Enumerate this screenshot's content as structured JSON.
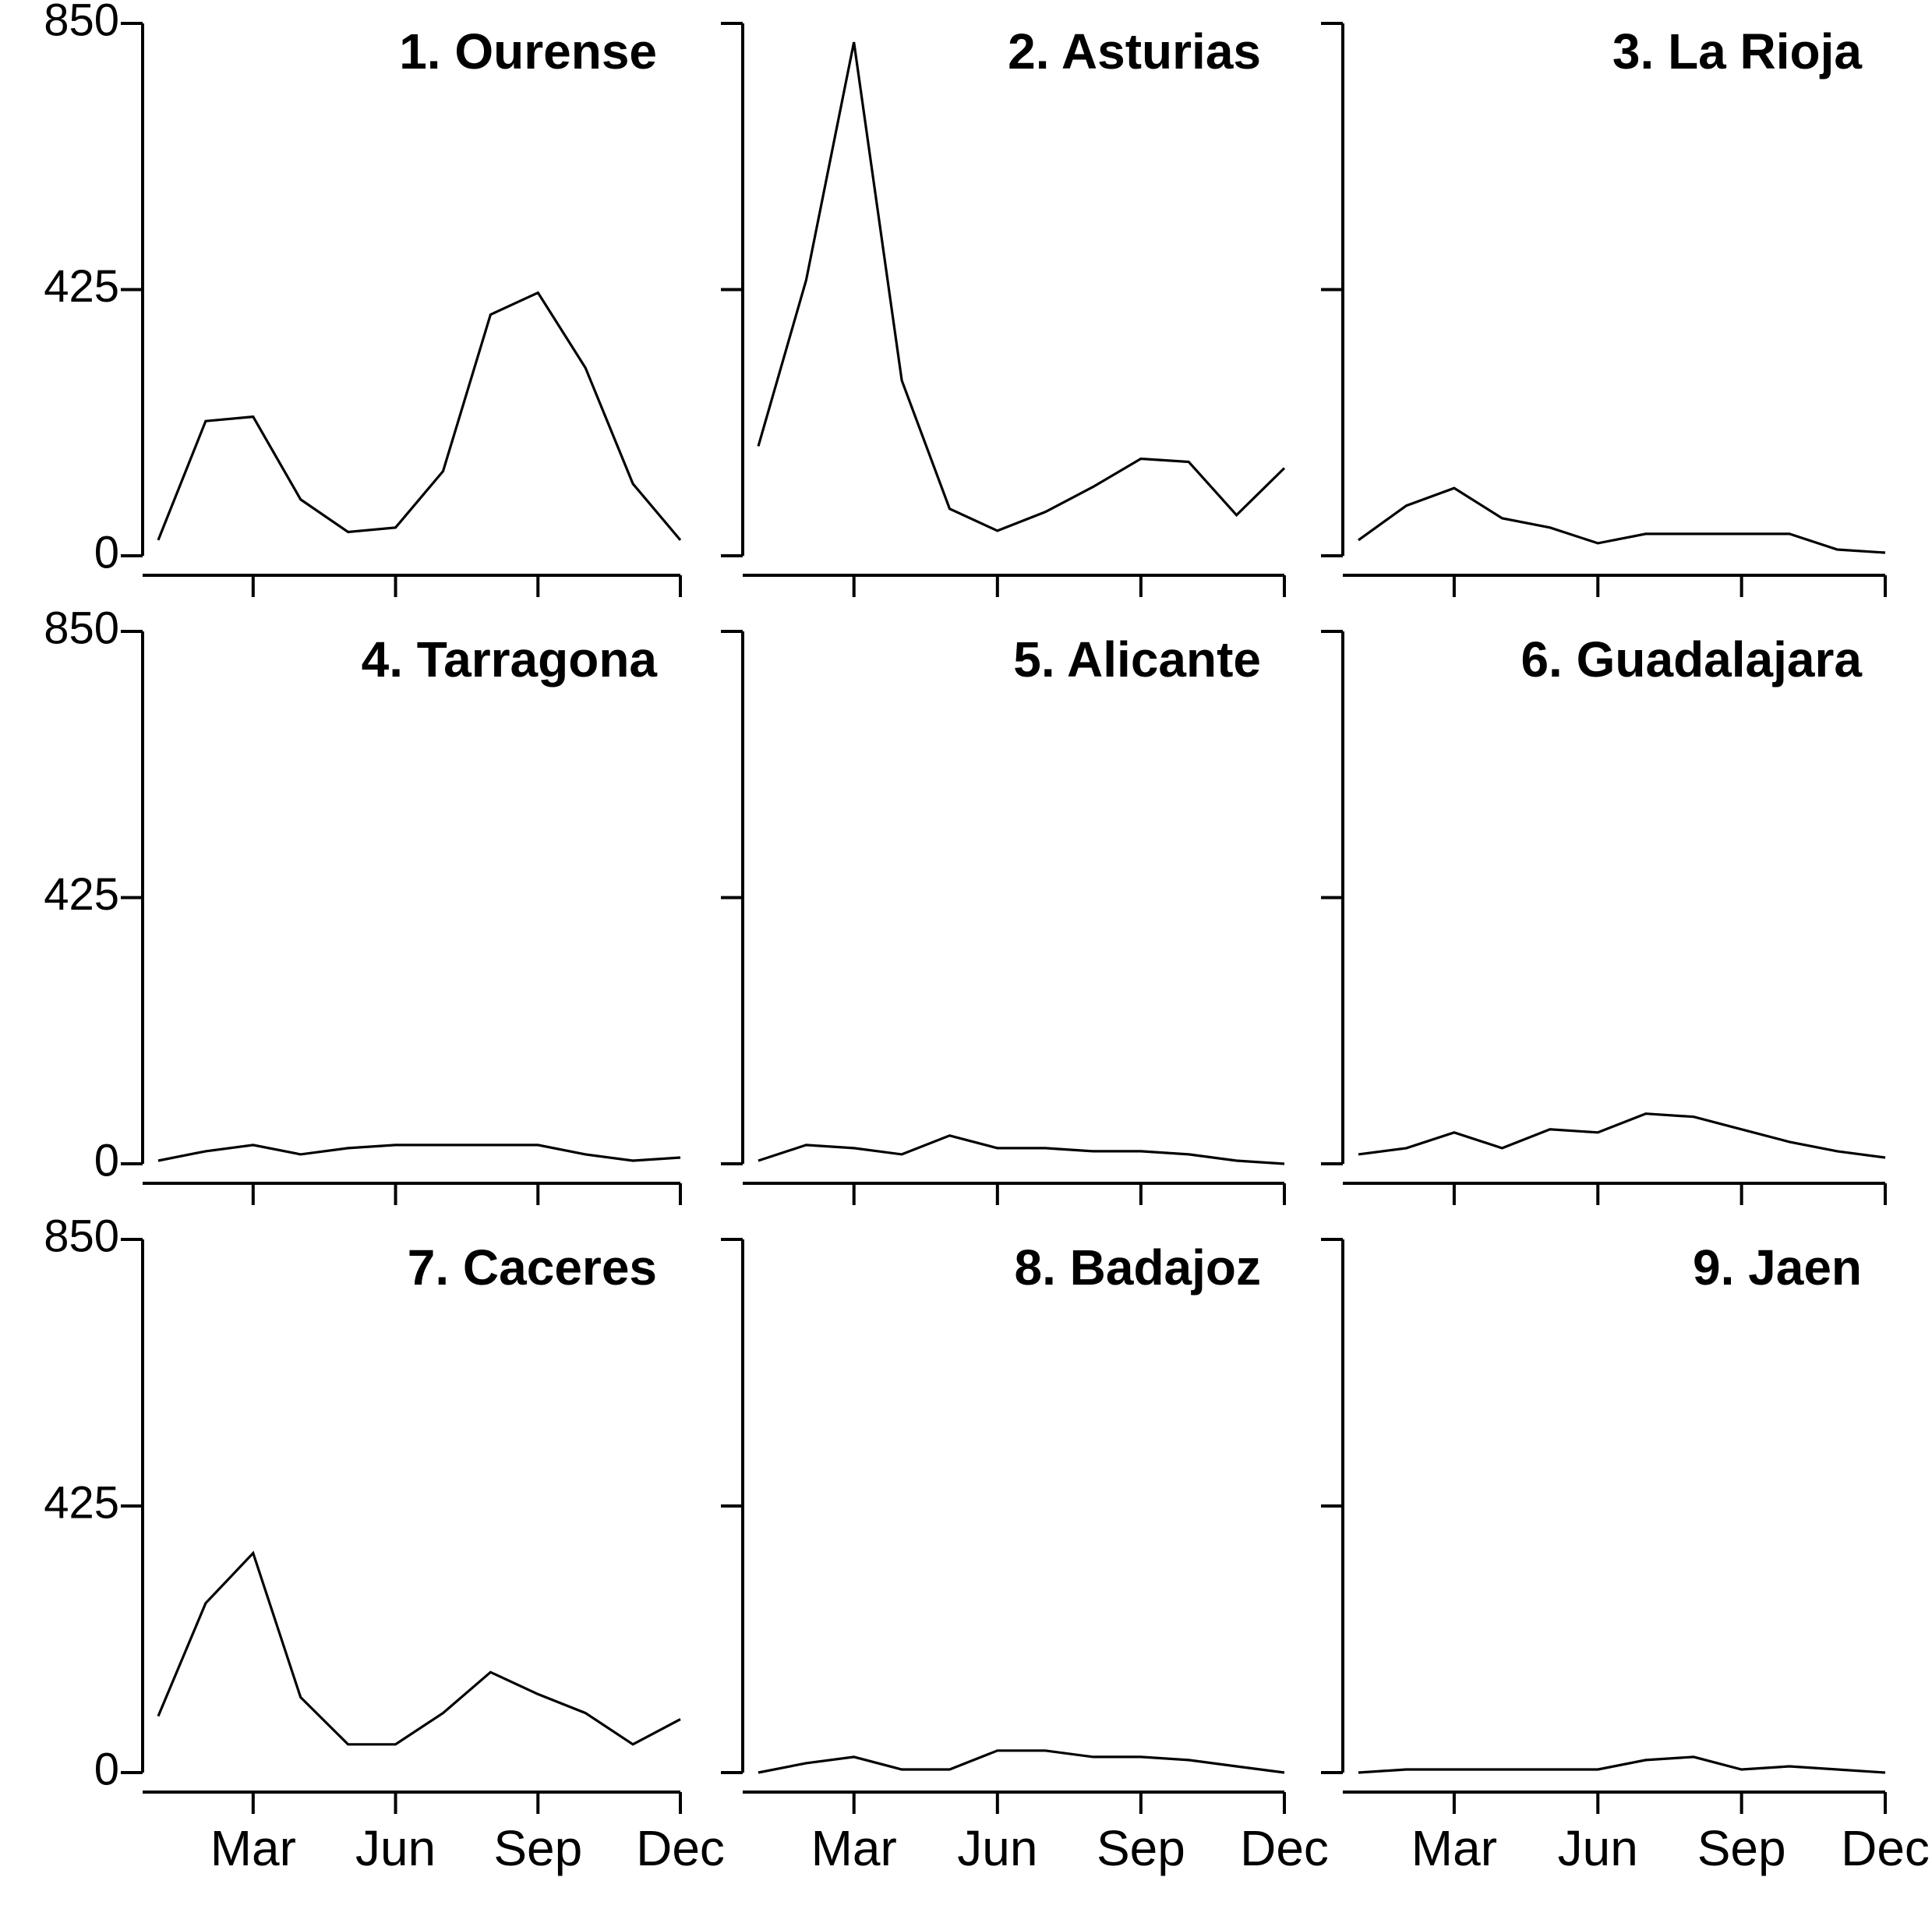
{
  "chart_data": {
    "type": "line",
    "layout": "3x3 small multiples",
    "months": [
      1,
      2,
      3,
      4,
      5,
      6,
      7,
      8,
      9,
      10,
      11,
      12
    ],
    "x_ticks": [
      3,
      6,
      9,
      12
    ],
    "x_tick_labels": [
      "Mar",
      "Jun",
      "Sep",
      "Dec"
    ],
    "ylim": [
      0,
      850
    ],
    "y_ticks": [
      0,
      425,
      850
    ],
    "y_tick_labels": [
      "0",
      "425",
      "850"
    ],
    "line_color": "#000000",
    "panels": [
      {
        "title": "1. Ourense",
        "values": [
          25,
          215,
          222,
          90,
          38,
          45,
          135,
          385,
          420,
          300,
          115,
          25
        ]
      },
      {
        "title": "2. Asturias",
        "values": [
          175,
          440,
          820,
          280,
          75,
          40,
          70,
          110,
          155,
          150,
          65,
          140
        ]
      },
      {
        "title": "3. La Rioja",
        "values": [
          25,
          80,
          108,
          60,
          45,
          20,
          35,
          35,
          35,
          35,
          10,
          5
        ]
      },
      {
        "title": "4. Tarragona",
        "values": [
          5,
          20,
          30,
          15,
          25,
          30,
          30,
          30,
          30,
          15,
          5,
          10
        ]
      },
      {
        "title": "5. Alicante",
        "values": [
          5,
          30,
          25,
          15,
          45,
          25,
          25,
          20,
          20,
          15,
          5,
          0
        ]
      },
      {
        "title": "6. Guadalajara",
        "values": [
          15,
          25,
          50,
          25,
          55,
          50,
          80,
          75,
          55,
          35,
          20,
          10
        ]
      },
      {
        "title": "7. Caceres",
        "values": [
          90,
          270,
          350,
          120,
          45,
          45,
          95,
          160,
          125,
          95,
          45,
          85
        ]
      },
      {
        "title": "8. Badajoz",
        "values": [
          0,
          15,
          25,
          5,
          5,
          35,
          35,
          25,
          25,
          20,
          10,
          0
        ]
      },
      {
        "title": "9. Jaen",
        "values": [
          0,
          5,
          5,
          5,
          5,
          5,
          20,
          25,
          5,
          10,
          5,
          0
        ]
      }
    ]
  }
}
